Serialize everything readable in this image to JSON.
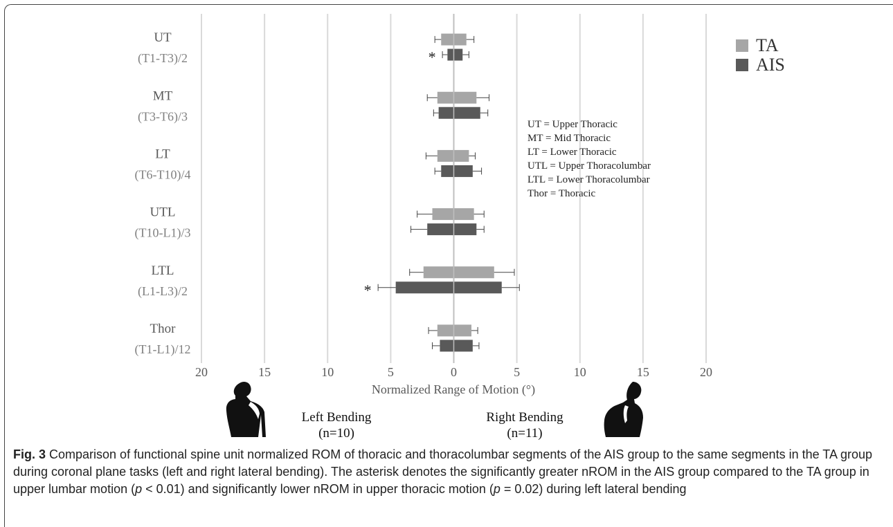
{
  "chart_data": {
    "type": "bar",
    "orientation": "horizontal",
    "diverging": true,
    "xlabel": "Normalized Range of Motion (°)",
    "xlim": [
      -20,
      20
    ],
    "xticks": [
      "20",
      "15",
      "10",
      "5",
      "0",
      "5",
      "10",
      "15",
      "20"
    ],
    "grid": true,
    "legend_position": "top-right",
    "categories": [
      {
        "label": "UT",
        "sublabel": "(T1-T3)/2"
      },
      {
        "label": "MT",
        "sublabel": "(T3-T6)/3"
      },
      {
        "label": "LT",
        "sublabel": "(T6-T10)/4"
      },
      {
        "label": "UTL",
        "sublabel": "(T10-L1)/3"
      },
      {
        "label": "LTL",
        "sublabel": "(L1-L3)/2"
      },
      {
        "label": "Thor",
        "sublabel": "(T1-L1)/12"
      }
    ],
    "series": [
      {
        "name": "TA",
        "color": "#a6a6a6",
        "left": [
          1.0,
          1.3,
          1.3,
          1.7,
          2.4,
          1.3
        ],
        "right": [
          1.0,
          1.8,
          1.2,
          1.6,
          3.2,
          1.4
        ],
        "left_error": [
          0.5,
          0.8,
          0.9,
          1.2,
          1.1,
          0.7
        ],
        "right_error": [
          0.6,
          1.0,
          0.5,
          0.8,
          1.6,
          0.5
        ],
        "marker": [
          "",
          "",
          "",
          "",
          "",
          ""
        ]
      },
      {
        "name": "AIS",
        "color": "#595959",
        "left": [
          0.5,
          1.2,
          1.0,
          2.1,
          4.6,
          1.1
        ],
        "right": [
          0.7,
          2.1,
          1.5,
          1.8,
          3.8,
          1.5
        ],
        "left_error": [
          0.4,
          0.4,
          0.5,
          1.3,
          1.4,
          0.6
        ],
        "right_error": [
          0.5,
          0.6,
          0.7,
          0.6,
          1.4,
          0.5
        ],
        "marker": [
          "*",
          "",
          "",
          "",
          "*",
          ""
        ]
      }
    ],
    "abbreviations": [
      "UT = Upper Thoracic",
      "MT = Mid Thoracic",
      "LT = Lower Thoracic",
      "UTL = Upper Thoracolumbar",
      "LTL = Lower Thoracolumbar",
      "Thor = Thoracic"
    ],
    "directions": [
      {
        "label": "Left Bending",
        "n": "(n=10)"
      },
      {
        "label": "Right Bending",
        "n": "(n=11)"
      }
    ]
  },
  "caption": {
    "label": "Fig. 3",
    "text_before_p1": " Comparison of functional spine unit normalized ROM of thoracic and thoracolumbar segments of the AIS group to the same segments in the TA group during coronal plane tasks (left and right lateral bending). The asterisk denotes the significantly greater nROM in the AIS group compared to the TA group in upper lumbar motion (",
    "p_symbol": "p",
    "p1_value": " < 0.01) and significantly lower nROM in upper thoracic motion (",
    "p2_value": " = 0.02) during left lateral bending"
  },
  "icons": [
    "person-bending-left-icon",
    "person-bending-right-icon"
  ]
}
